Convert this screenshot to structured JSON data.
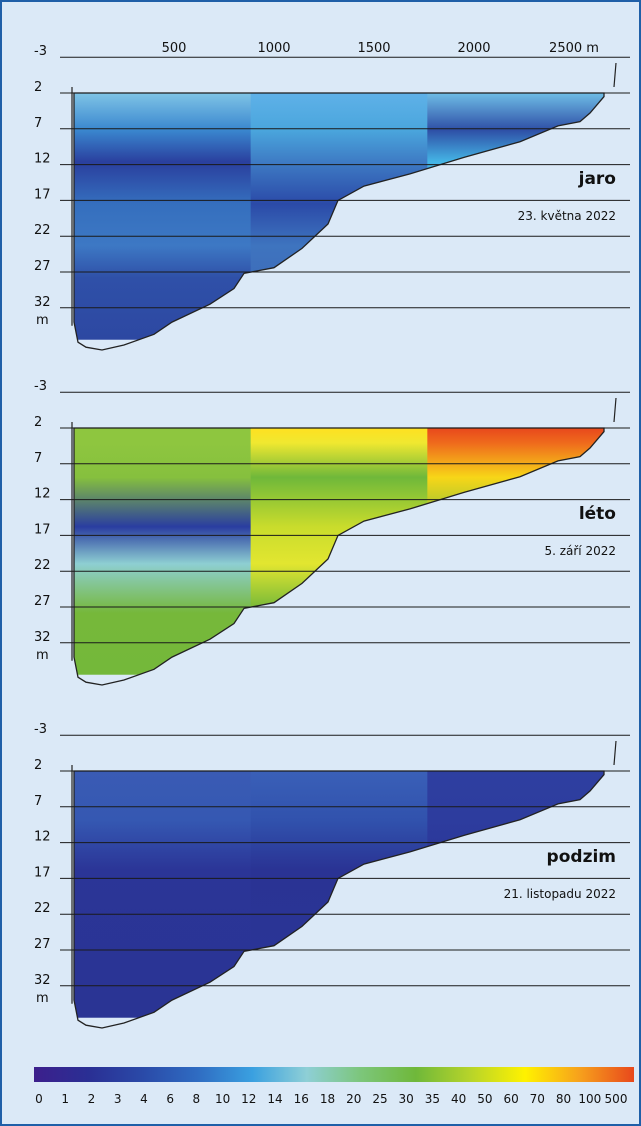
{
  "chart_data": {
    "type": "heatmap",
    "x_ticks": [
      {
        "label": "500",
        "value": 500
      },
      {
        "label": "1000",
        "value": 1000
      },
      {
        "label": "1500",
        "value": 1500
      },
      {
        "label": "2000",
        "value": 2000
      },
      {
        "label": "2500 m",
        "value": 2500
      }
    ],
    "y_ticks": [
      {
        "label": "-3",
        "value": -3
      },
      {
        "label": "2",
        "value": 2
      },
      {
        "label": "7",
        "value": 7
      },
      {
        "label": "12",
        "value": 12
      },
      {
        "label": "17",
        "value": 17
      },
      {
        "label": "22",
        "value": 22
      },
      {
        "label": "27",
        "value": 27
      },
      {
        "label": "32",
        "value": 32
      }
    ],
    "y_unit": "m",
    "xlim": [
      0,
      2800
    ],
    "ylim": [
      -3,
      35
    ],
    "panels": [
      {
        "season": "jaro",
        "date": "23. května 2022",
        "overall_color": "#3a6dc0",
        "bands": [
          {
            "depth": 0,
            "left": "#7fc4e6",
            "mid": "#5fb1e8",
            "right": "#6fbde6"
          },
          {
            "depth": 0.15,
            "left": "#3a87cf",
            "mid": "#4aa6dd",
            "right": "#2e4fa6"
          },
          {
            "depth": 0.28,
            "left": "#2a3f9e",
            "mid": "#3e7bc4",
            "right": "#45b6e6"
          },
          {
            "depth": 0.45,
            "left": "#356fbe",
            "mid": "#2b4aa8",
            "right": "#3a86cc"
          },
          {
            "depth": 0.62,
            "left": "#3d78c4",
            "mid": "#3e74bf",
            "right": "#3d73bf"
          },
          {
            "depth": 0.75,
            "left": "#2f50a8",
            "mid": "#3d6dba",
            "right": "#3d6dba"
          },
          {
            "depth": 1,
            "left": "#2d48a2",
            "mid": "#3458ad",
            "right": "#3458ad"
          }
        ]
      },
      {
        "season": "léto",
        "date": "5. září 2022",
        "overall_color": "#6fb83a",
        "bands": [
          {
            "depth": 0,
            "left": "#8ec63f",
            "mid": "#ffe020",
            "right": "#e8481c"
          },
          {
            "depth": 0.06,
            "left": "#8ec63f",
            "mid": "#f0e830",
            "right": "#ef6a1c"
          },
          {
            "depth": 0.2,
            "left": "#86c03e",
            "mid": "#6fb83a",
            "right": "#f7d618"
          },
          {
            "depth": 0.4,
            "left": "#2a3da0",
            "mid": "#c9dc2c",
            "right": "#7fbf3c"
          },
          {
            "depth": 0.55,
            "left": "#8ecfd2",
            "mid": "#e2e630",
            "right": "#7dbf3c"
          },
          {
            "depth": 0.75,
            "left": "#76b83a",
            "mid": "#6cb43a",
            "right": "#6cb43a"
          },
          {
            "depth": 1,
            "left": "#74b83a",
            "mid": "#79bb3a",
            "right": "#79bb3a"
          }
        ]
      },
      {
        "season": "podzim",
        "date": "21. listopadu 2022",
        "overall_color": "#2b3597",
        "bands": [
          {
            "depth": 0,
            "left": "#3a5bb4",
            "mid": "#3a60b8",
            "right": "#2e3fa0"
          },
          {
            "depth": 0.2,
            "left": "#3558b2",
            "mid": "#3152ad",
            "right": "#2d3c9e"
          },
          {
            "depth": 0.4,
            "left": "#2b3597",
            "mid": "#2a3394",
            "right": "#2b3597"
          },
          {
            "depth": 1,
            "left": "#2a3494",
            "mid": "#2b3597",
            "right": "#2b3597"
          }
        ]
      }
    ],
    "legend": {
      "labels": [
        "0",
        "1",
        "2",
        "3",
        "4",
        "6",
        "8",
        "10",
        "12",
        "14",
        "16",
        "18",
        "20",
        "25",
        "30",
        "35",
        "40",
        "50",
        "60",
        "70",
        "80",
        "100",
        "500"
      ],
      "colors": [
        "#3c1f8c",
        "#2a2f94",
        "#2a4aa8",
        "#2f6cc2",
        "#3aa0e0",
        "#8ecfd6",
        "#7cc67a",
        "#6fb83a",
        "#b7d42a",
        "#fff200",
        "#f7a11c",
        "#e8481c"
      ]
    }
  }
}
